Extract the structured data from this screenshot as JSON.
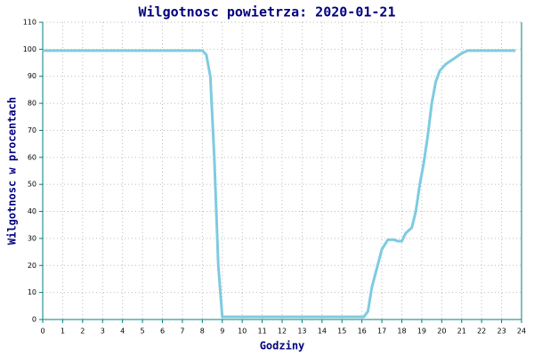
{
  "chart_data": {
    "type": "line",
    "title": "Wilgotnosc powietrza: 2020-01-21",
    "x_label": "Godziny",
    "y_label": "Wilgotnosc w procentach",
    "x": [
      0,
      8,
      8.2,
      8.4,
      8.6,
      8.8,
      9,
      16.1,
      16.3,
      16.5,
      17,
      17.3,
      17.6,
      17.8,
      18,
      18.2,
      18.5,
      18.7,
      18.9,
      19.1,
      19.3,
      19.5,
      19.7,
      19.9,
      20.2,
      20.5,
      20.7,
      21,
      21.3,
      23.7
    ],
    "series": [
      {
        "color": "#7ecbe0",
        "values": [
          99.5,
          99.5,
          98,
          90,
          60,
          20,
          1,
          1,
          3,
          12,
          26,
          29.5,
          29.5,
          29,
          29,
          32,
          34,
          40,
          50,
          58,
          68,
          80,
          88,
          92,
          94.5,
          96,
          97,
          98.5,
          99.5,
          99.5
        ]
      }
    ],
    "xlim": [
      0,
      24
    ],
    "xticks": [
      0,
      1,
      2,
      3,
      4,
      5,
      6,
      7,
      8,
      9,
      10,
      11,
      12,
      13,
      14,
      15,
      16,
      17,
      18,
      19,
      20,
      21,
      22,
      23,
      24
    ],
    "ylim": [
      0,
      110
    ],
    "yticks": [
      0,
      10,
      20,
      30,
      40,
      50,
      60,
      70,
      80,
      90,
      100,
      110
    ],
    "grid": true
  }
}
